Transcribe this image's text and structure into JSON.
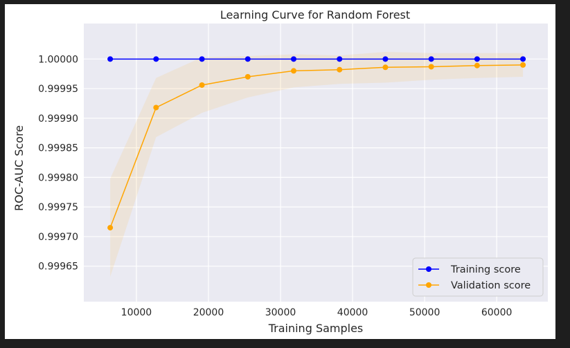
{
  "chart_data": {
    "type": "line",
    "title": "Learning Curve for Random Forest",
    "xlabel": "Training Samples",
    "ylabel": "ROC-AUC Score",
    "xlim": [
      2700,
      67100
    ],
    "ylim": [
      0.99959,
      1.00006
    ],
    "x": [
      6365,
      12730,
      19095,
      25460,
      31825,
      38190,
      44555,
      50920,
      57285,
      63650
    ],
    "series": [
      {
        "name": "Training score",
        "color": "#0000ff",
        "values": [
          1.0,
          1.0,
          1.0,
          1.0,
          1.0,
          1.0,
          1.0,
          1.0,
          1.0,
          1.0
        ],
        "band_lower": [
          1.0,
          1.0,
          1.0,
          1.0,
          1.0,
          1.0,
          1.0,
          1.0,
          1.0,
          1.0
        ],
        "band_upper": [
          1.0,
          1.0,
          1.0,
          1.0,
          1.0,
          1.0,
          1.0,
          1.0,
          1.0,
          1.0
        ]
      },
      {
        "name": "Validation score",
        "color": "#ffa500",
        "values": [
          0.999715,
          0.999918,
          0.999956,
          0.99997,
          0.99998,
          0.999982,
          0.999986,
          0.999987,
          0.999989,
          0.99999
        ],
        "band_lower": [
          0.999632,
          0.999868,
          0.999909,
          0.999935,
          0.999952,
          0.999958,
          0.99996,
          0.999965,
          0.999968,
          0.99997
        ],
        "band_upper": [
          0.999798,
          0.999968,
          1.000003,
          1.000005,
          1.000008,
          1.000006,
          1.000012,
          1.00001,
          1.00001,
          1.00001
        ]
      }
    ],
    "xticks": [
      {
        "value": 10000,
        "label": "10000"
      },
      {
        "value": 20000,
        "label": "20000"
      },
      {
        "value": 30000,
        "label": "30000"
      },
      {
        "value": 40000,
        "label": "40000"
      },
      {
        "value": 50000,
        "label": "50000"
      },
      {
        "value": 60000,
        "label": "60000"
      }
    ],
    "yticks": [
      {
        "value": 0.99965,
        "label": "0.99965"
      },
      {
        "value": 0.9997,
        "label": "0.99970"
      },
      {
        "value": 0.99975,
        "label": "0.99975"
      },
      {
        "value": 0.9998,
        "label": "0.99980"
      },
      {
        "value": 0.99985,
        "label": "0.99985"
      },
      {
        "value": 0.9999,
        "label": "0.99990"
      },
      {
        "value": 0.99995,
        "label": "0.99995"
      },
      {
        "value": 1.0,
        "label": "1.00000"
      }
    ],
    "grid": true,
    "legend_position": "bottom-right",
    "band_color": "#ffa500",
    "plot_background": "#eaeaf2",
    "grid_color": "#ffffff"
  }
}
